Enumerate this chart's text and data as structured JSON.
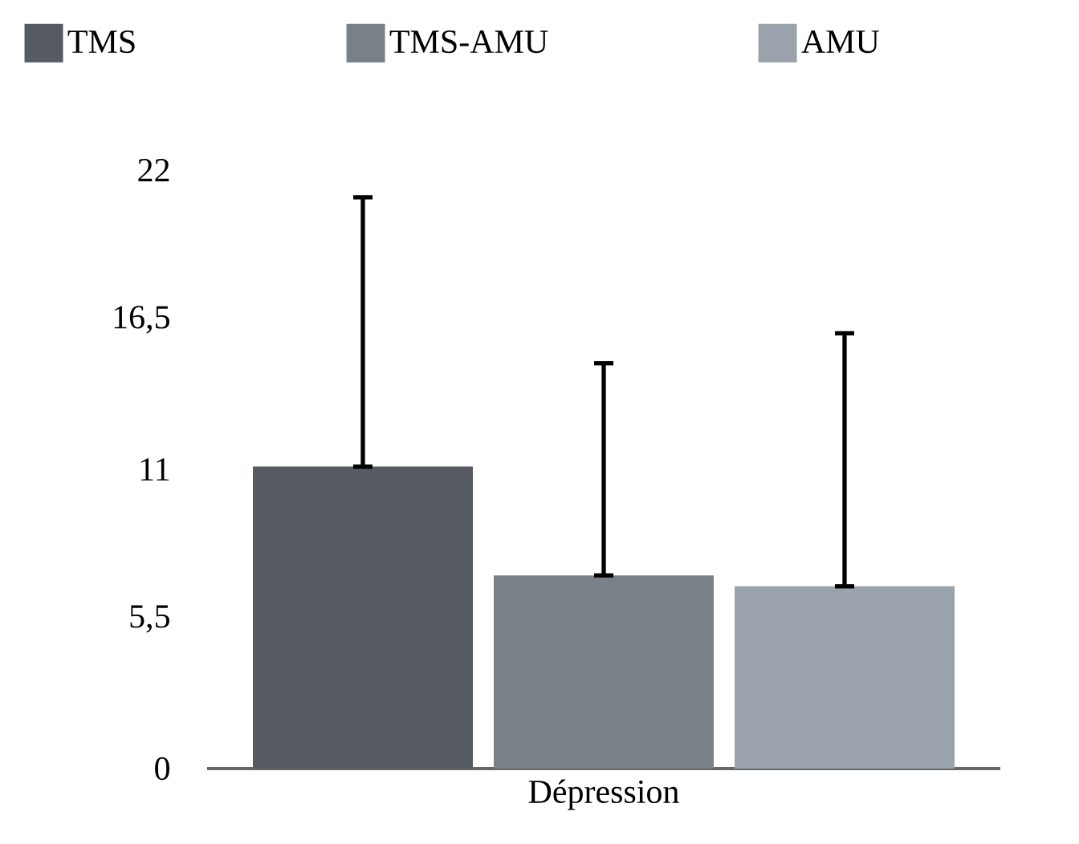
{
  "chart_data": {
    "type": "bar",
    "categories": [
      "Dépression"
    ],
    "series": [
      {
        "name": "TMS",
        "color": "#565b62",
        "values": [
          11.1
        ],
        "errors": [
          [
            11.1,
            21.0
          ]
        ]
      },
      {
        "name": "TMS-AMU",
        "color": "#7a8088",
        "values": [
          7.1
        ],
        "errors": [
          [
            7.1,
            14.9
          ]
        ]
      },
      {
        "name": "AMU",
        "color": "#9aa3ab",
        "values": [
          6.7
        ],
        "errors": [
          [
            6.7,
            16.0
          ]
        ]
      }
    ],
    "ylim": [
      0,
      22
    ],
    "yticks": [
      0,
      {
        "value": 5.5,
        "label": "5,5"
      },
      11,
      {
        "value": 16.5,
        "label": "16,5"
      },
      22
    ],
    "legend": "top"
  }
}
